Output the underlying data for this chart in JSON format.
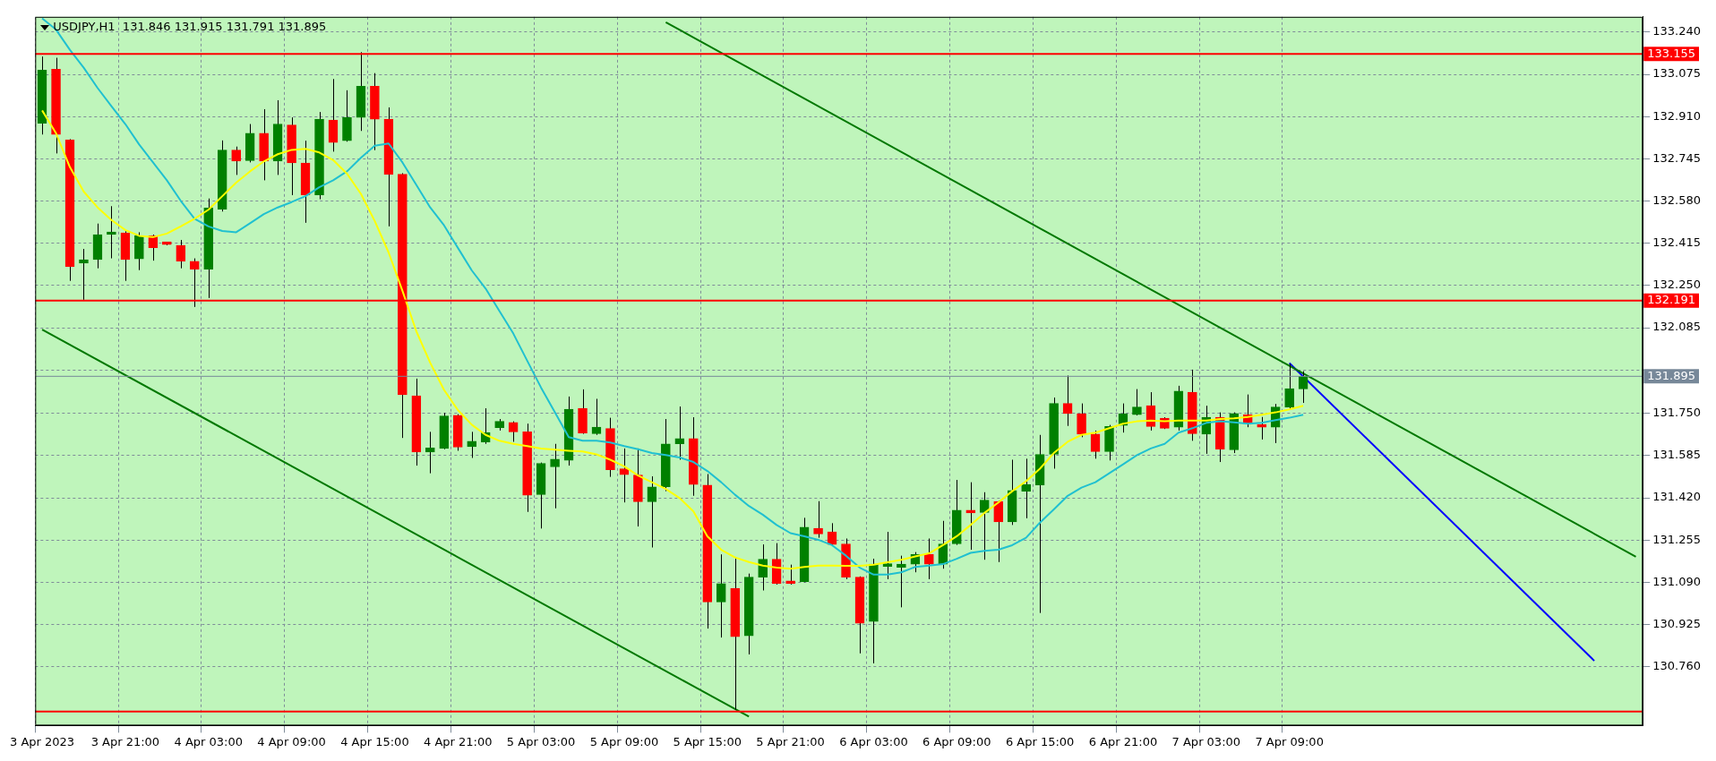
{
  "chart_data": {
    "type": "candlestick",
    "title": "USDJPY,H1  131.846 131.915 131.791 131.895",
    "categories": [
      "3 Apr 2023",
      null,
      null,
      null,
      null,
      null,
      "3 Apr 21:00",
      null,
      null,
      null,
      null,
      null,
      "4 Apr 03:00",
      null,
      null,
      null,
      null,
      null,
      "4 Apr 09:00",
      null,
      null,
      null,
      null,
      null,
      "4 Apr 15:00",
      null,
      null,
      null,
      null,
      null,
      "4 Apr 21:00",
      null,
      null,
      null,
      null,
      null,
      "5 Apr 03:00",
      null,
      null,
      null,
      null,
      null,
      "5 Apr 09:00",
      null,
      null,
      null,
      null,
      null,
      "5 Apr 15:00",
      null,
      null,
      null,
      null,
      null,
      "5 Apr 21:00",
      null,
      null,
      null,
      null,
      null,
      "6 Apr 03:00",
      null,
      null,
      null,
      null,
      null,
      "6 Apr 09:00",
      null,
      null,
      null,
      null,
      null,
      "6 Apr 15:00",
      null,
      null,
      null,
      null,
      null,
      "6 Apr 21:00",
      null,
      null,
      null,
      null,
      null,
      "7 Apr 03:00",
      null,
      null,
      null,
      null,
      null,
      "7 Apr 09:00",
      null,
      null,
      null,
      null,
      null,
      null,
      null,
      null,
      null,
      null,
      null,
      null,
      null,
      null,
      null,
      null,
      null,
      null,
      null,
      null,
      null,
      null,
      null,
      null,
      null
    ],
    "ohlc": [
      [
        132.884,
        133.145,
        132.84,
        133.092
      ],
      [
        133.095,
        133.14,
        132.766,
        132.84
      ],
      [
        132.819,
        132.822,
        132.268,
        132.324
      ],
      [
        132.337,
        132.393,
        132.194,
        132.351
      ],
      [
        132.351,
        132.492,
        132.317,
        132.449
      ],
      [
        132.449,
        132.56,
        132.356,
        132.456
      ],
      [
        132.456,
        132.462,
        132.268,
        132.351
      ],
      [
        132.354,
        132.458,
        132.31,
        132.444
      ],
      [
        132.444,
        132.449,
        132.347,
        132.398
      ],
      [
        132.412,
        132.416,
        132.407,
        132.41
      ],
      [
        132.407,
        132.428,
        132.317,
        132.345
      ],
      [
        132.345,
        132.356,
        132.166,
        132.314
      ],
      [
        132.314,
        132.59,
        132.201,
        132.553
      ],
      [
        132.548,
        132.817,
        132.539,
        132.779
      ],
      [
        132.779,
        132.793,
        132.682,
        132.736
      ],
      [
        132.738,
        132.881,
        132.731,
        132.845
      ],
      [
        132.845,
        132.939,
        132.661,
        132.736
      ],
      [
        132.736,
        132.974,
        132.682,
        132.881
      ],
      [
        132.877,
        132.907,
        132.603,
        132.729
      ],
      [
        132.729,
        132.816,
        132.495,
        132.604
      ],
      [
        132.604,
        132.928,
        132.587,
        132.9
      ],
      [
        132.897,
        133.057,
        132.773,
        132.809
      ],
      [
        132.816,
        133.013,
        132.812,
        132.907
      ],
      [
        132.907,
        133.162,
        132.854,
        133.029
      ],
      [
        133.029,
        133.08,
        132.779,
        132.9
      ],
      [
        132.9,
        132.946,
        132.481,
        132.685
      ],
      [
        132.685,
        132.689,
        131.654,
        131.823
      ],
      [
        131.819,
        131.886,
        131.546,
        131.599
      ],
      [
        131.599,
        131.678,
        131.516,
        131.615
      ],
      [
        131.613,
        131.752,
        131.61,
        131.74
      ],
      [
        131.743,
        131.747,
        131.604,
        131.618
      ],
      [
        131.62,
        131.678,
        131.576,
        131.641
      ],
      [
        131.638,
        131.77,
        131.631,
        131.675
      ],
      [
        131.694,
        131.728,
        131.683,
        131.719
      ],
      [
        131.715,
        131.719,
        131.639,
        131.678
      ],
      [
        131.678,
        131.71,
        131.365,
        131.43
      ],
      [
        131.433,
        131.558,
        131.3,
        131.555
      ],
      [
        131.541,
        131.631,
        131.379,
        131.571
      ],
      [
        131.567,
        131.816,
        131.546,
        131.766
      ],
      [
        131.77,
        131.844,
        131.67,
        131.673
      ],
      [
        131.671,
        131.807,
        131.666,
        131.696
      ],
      [
        131.691,
        131.733,
        131.502,
        131.53
      ],
      [
        131.534,
        131.613,
        131.402,
        131.511
      ],
      [
        131.509,
        131.613,
        131.308,
        131.405
      ],
      [
        131.405,
        131.504,
        131.226,
        131.463
      ],
      [
        131.463,
        131.728,
        131.446,
        131.631
      ],
      [
        131.631,
        131.777,
        131.569,
        131.652
      ],
      [
        131.652,
        131.735,
        131.428,
        131.472
      ],
      [
        131.47,
        131.513,
        130.909,
        131.013
      ],
      [
        131.013,
        131.199,
        130.874,
        131.085
      ],
      [
        131.066,
        131.182,
        130.592,
        130.877
      ],
      [
        130.881,
        131.124,
        130.808,
        131.11
      ],
      [
        131.11,
        131.238,
        131.058,
        131.18
      ],
      [
        131.18,
        131.243,
        131.081,
        131.085
      ],
      [
        131.09,
        131.159,
        131.081,
        131.085
      ],
      [
        131.092,
        131.342,
        131.09,
        131.305
      ],
      [
        131.301,
        131.407,
        131.264,
        131.279
      ],
      [
        131.287,
        131.321,
        131.235,
        131.238
      ],
      [
        131.24,
        131.261,
        131.102,
        131.11
      ],
      [
        131.11,
        131.113,
        130.812,
        130.93
      ],
      [
        130.937,
        131.182,
        130.773,
        131.161
      ],
      [
        131.152,
        131.287,
        131.102,
        131.153
      ],
      [
        131.148,
        131.194,
        130.992,
        131.161
      ],
      [
        131.161,
        131.208,
        131.129,
        131.199
      ],
      [
        131.199,
        131.261,
        131.102,
        131.161
      ],
      [
        131.161,
        131.33,
        131.143,
        131.24
      ],
      [
        131.24,
        131.49,
        131.236,
        131.372
      ],
      [
        131.372,
        131.481,
        131.217,
        131.361
      ],
      [
        131.363,
        131.442,
        131.178,
        131.411
      ],
      [
        131.405,
        131.409,
        131.169,
        131.326
      ],
      [
        131.326,
        131.569,
        131.314,
        131.449
      ],
      [
        131.446,
        131.573,
        131.34,
        131.472
      ],
      [
        131.47,
        131.666,
        130.97,
        131.59
      ],
      [
        131.59,
        131.812,
        131.534,
        131.789
      ],
      [
        131.789,
        131.898,
        131.701,
        131.749
      ],
      [
        131.749,
        131.789,
        131.657,
        131.669
      ],
      [
        131.669,
        131.683,
        131.573,
        131.601
      ],
      [
        131.601,
        131.705,
        131.566,
        131.699
      ],
      [
        131.703,
        131.789,
        131.675,
        131.749
      ],
      [
        131.745,
        131.845,
        131.742,
        131.775
      ],
      [
        131.78,
        131.833,
        131.683,
        131.699
      ],
      [
        131.731,
        131.735,
        131.689,
        131.692
      ],
      [
        131.696,
        131.858,
        131.683,
        131.837
      ],
      [
        131.833,
        131.921,
        131.643,
        131.671
      ],
      [
        131.669,
        131.78,
        131.592,
        131.735
      ],
      [
        131.735,
        131.754,
        131.56,
        131.61
      ],
      [
        131.608,
        131.754,
        131.595,
        131.75
      ],
      [
        131.745,
        131.824,
        131.696,
        131.71
      ],
      [
        131.706,
        131.736,
        131.648,
        131.696
      ],
      [
        131.696,
        131.787,
        131.634,
        131.775
      ],
      [
        131.775,
        131.944,
        131.77,
        131.847
      ],
      [
        131.846,
        131.915,
        131.791,
        131.895
      ],
      null,
      null,
      null,
      null,
      null,
      null,
      null,
      null,
      null,
      null,
      null,
      null,
      null,
      null,
      null,
      null,
      null,
      null,
      null,
      null,
      null,
      null,
      null,
      null
    ],
    "colors": [
      "#008000",
      "#ff0000",
      "#ff0000",
      "#008000",
      "#008000",
      "#008000",
      "#ff0000",
      "#008000",
      "#ff0000",
      "#ff0000",
      "#ff0000",
      "#ff0000",
      "#008000",
      "#008000",
      "#ff0000",
      "#008000",
      "#ff0000",
      "#008000",
      "#ff0000",
      "#ff0000",
      "#008000",
      "#ff0000",
      "#008000",
      "#008000",
      "#ff0000",
      "#ff0000",
      "#ff0000",
      "#ff0000",
      "#008000",
      "#008000",
      "#ff0000",
      "#008000",
      "#008000",
      "#008000",
      "#ff0000",
      "#ff0000",
      "#008000",
      "#008000",
      "#008000",
      "#ff0000",
      "#008000",
      "#ff0000",
      "#ff0000",
      "#ff0000",
      "#008000",
      "#008000",
      "#008000",
      "#ff0000",
      "#ff0000",
      "#008000",
      "#ff0000",
      "#008000",
      "#008000",
      "#ff0000",
      "#ff0000",
      "#008000",
      "#ff0000",
      "#ff0000",
      "#ff0000",
      "#ff0000",
      "#008000",
      "#008000",
      "#008000",
      "#008000",
      "#ff0000",
      "#008000",
      "#008000",
      "#ff0000",
      "#008000",
      "#ff0000",
      "#008000",
      "#008000",
      "#008000",
      "#008000",
      "#ff0000",
      "#ff0000",
      "#ff0000",
      "#008000",
      "#008000",
      "#008000",
      "#ff0000",
      "#ff0000",
      "#008000",
      "#ff0000",
      "#008000",
      "#ff0000",
      "#008000",
      "#ff0000",
      "#ff0000",
      "#008000",
      "#008000",
      "#008000",
      null,
      null,
      null,
      null,
      null,
      null,
      null,
      null,
      null,
      null,
      null,
      null,
      null,
      null,
      null,
      null,
      null,
      null,
      null,
      null,
      null,
      null,
      null,
      null
    ],
    "series": [
      {
        "type": "line",
        "color": "#ffff00",
        "values": [
          132.934,
          132.845,
          132.713,
          132.617,
          132.555,
          132.506,
          132.467,
          132.444,
          132.439,
          132.453,
          132.481,
          132.511,
          132.546,
          132.599,
          132.652,
          132.696,
          132.735,
          132.763,
          132.78,
          132.784,
          132.77,
          132.74,
          132.687,
          132.608,
          132.502,
          132.379,
          132.229,
          132.071,
          131.948,
          131.842,
          131.763,
          131.706,
          131.666,
          131.643,
          131.631,
          131.622,
          131.613,
          131.608,
          131.604,
          131.601,
          131.59,
          131.569,
          131.543,
          131.507,
          131.481,
          131.455,
          131.419,
          131.367,
          131.27,
          131.217,
          131.187,
          131.169,
          131.155,
          131.147,
          131.143,
          131.15,
          131.155,
          131.155,
          131.154,
          131.154,
          131.159,
          131.168,
          131.178,
          131.191,
          131.203,
          131.235,
          131.27,
          131.314,
          131.361,
          131.402,
          131.446,
          131.485,
          131.534,
          131.595,
          131.639,
          131.666,
          131.675,
          131.692,
          131.71,
          131.719,
          131.722,
          131.719,
          131.722,
          131.722,
          131.722,
          131.728,
          131.731,
          131.736,
          131.745,
          131.754,
          131.766,
          131.78,
          null,
          null,
          null,
          null,
          null,
          null,
          null,
          null,
          null,
          null,
          null,
          null,
          null,
          null,
          null,
          null,
          null,
          null,
          null,
          null,
          null,
          null,
          null,
          null
        ]
      },
      {
        "type": "line",
        "color": "#20c0d0",
        "values": [
          133.294,
          133.25,
          133.171,
          133.101,
          133.022,
          132.951,
          132.881,
          132.801,
          132.731,
          132.661,
          132.581,
          132.511,
          132.481,
          132.463,
          132.458,
          132.493,
          132.529,
          132.555,
          132.576,
          132.599,
          132.634,
          132.661,
          132.696,
          132.749,
          132.796,
          132.805,
          132.731,
          132.643,
          132.555,
          132.485,
          132.397,
          132.309,
          132.238,
          132.15,
          132.062,
          131.956,
          131.851,
          131.754,
          131.657,
          131.643,
          131.643,
          131.636,
          131.622,
          131.61,
          131.595,
          131.587,
          131.578,
          131.56,
          131.525,
          131.481,
          131.432,
          131.388,
          131.354,
          131.314,
          131.282,
          131.27,
          131.256,
          131.235,
          131.194,
          131.147,
          131.12,
          131.12,
          131.129,
          131.15,
          131.155,
          131.161,
          131.182,
          131.205,
          131.213,
          131.217,
          131.235,
          131.264,
          131.323,
          131.375,
          131.428,
          131.46,
          131.481,
          131.516,
          131.551,
          131.587,
          131.613,
          131.631,
          131.675,
          131.692,
          131.713,
          131.719,
          131.715,
          131.71,
          131.713,
          131.724,
          131.733,
          131.745,
          null,
          null,
          null,
          null,
          null,
          null,
          null,
          null,
          null,
          null,
          null,
          null,
          null,
          null,
          null,
          null,
          null,
          null,
          null,
          null,
          null,
          null,
          null,
          null
        ]
      },
      {
        "type": "line",
        "color": "#007800",
        "values": [
          null,
          null,
          null,
          null,
          null,
          null,
          null,
          null,
          null,
          null,
          null,
          null,
          null,
          null,
          null,
          null,
          null,
          null,
          null,
          null,
          null,
          null,
          null,
          null,
          null,
          null,
          null,
          null,
          null,
          null,
          null,
          null,
          null,
          null,
          null,
          null,
          null,
          null,
          null,
          null,
          null,
          null,
          null,
          null,
          null,
          133.279,
          null,
          null,
          null,
          null,
          null,
          null,
          null,
          null,
          null,
          null,
          null,
          null,
          null,
          null,
          null,
          null,
          null,
          null,
          null,
          null,
          null,
          null,
          null,
          null,
          null,
          null,
          null,
          null,
          null,
          null,
          null,
          null,
          null,
          null,
          null,
          null,
          null,
          null,
          null,
          null,
          null,
          null,
          null,
          null,
          null,
          null,
          null,
          null,
          null,
          null,
          null,
          null,
          null,
          null,
          null,
          null,
          null,
          null,
          null,
          null,
          null,
          null,
          null,
          null,
          null,
          null,
          null,
          null,
          null,
          131.19
        ]
      },
      {
        "type": "line",
        "color": "#007800",
        "values": [
          132.078,
          null,
          null,
          null,
          null,
          null,
          null,
          null,
          null,
          null,
          null,
          null,
          null,
          null,
          null,
          null,
          null,
          null,
          null,
          null,
          null,
          null,
          null,
          null,
          null,
          null,
          null,
          null,
          null,
          null,
          null,
          null,
          null,
          null,
          null,
          null,
          null,
          null,
          null,
          null,
          null,
          null,
          null,
          null,
          null,
          null,
          null,
          null,
          null,
          null,
          null,
          130.565,
          null,
          null,
          null,
          null,
          null,
          null,
          null,
          null,
          null,
          null,
          null,
          null,
          null,
          null,
          null,
          null,
          null,
          null,
          null,
          null,
          null,
          null,
          null,
          null,
          null,
          null,
          null,
          null,
          null,
          null,
          null,
          null,
          null,
          null,
          null,
          null,
          null,
          null,
          null,
          null,
          null,
          null,
          null,
          null,
          null,
          null,
          null,
          null,
          null,
          null,
          null,
          null,
          null,
          null,
          null,
          null,
          null,
          null,
          null,
          null,
          null,
          null,
          null,
          null
        ]
      },
      {
        "type": "line",
        "color": "#0000ff",
        "values": [
          null,
          null,
          null,
          null,
          null,
          null,
          null,
          null,
          null,
          null,
          null,
          null,
          null,
          null,
          null,
          null,
          null,
          null,
          null,
          null,
          null,
          null,
          null,
          null,
          null,
          null,
          null,
          null,
          null,
          null,
          null,
          null,
          null,
          null,
          null,
          null,
          null,
          null,
          null,
          null,
          null,
          null,
          null,
          null,
          null,
          null,
          null,
          null,
          null,
          null,
          null,
          null,
          null,
          null,
          null,
          null,
          null,
          null,
          null,
          null,
          null,
          null,
          null,
          null,
          null,
          null,
          null,
          null,
          null,
          null,
          null,
          null,
          null,
          null,
          null,
          null,
          null,
          null,
          null,
          null,
          null,
          null,
          null,
          null,
          null,
          null,
          null,
          null,
          null,
          null,
          131.947,
          null,
          null,
          null,
          null,
          null,
          null,
          null,
          null,
          null,
          null,
          null,
          null,
          null,
          null,
          null,
          null,
          null,
          null,
          null,
          null,
          null,
          130.783,
          null,
          null,
          null
        ]
      }
    ],
    "ylim": [
      130.53,
      133.3
    ],
    "yticks": [
      {
        "value": 130.76,
        "label": "130.760"
      },
      {
        "value": 130.925,
        "label": "130.925"
      },
      {
        "value": 131.09,
        "label": "131.090"
      },
      {
        "value": 131.255,
        "label": "131.255"
      },
      {
        "value": 131.42,
        "label": "131.420"
      },
      {
        "value": 131.585,
        "label": "131.585"
      },
      {
        "value": 131.75,
        "label": "131.750"
      },
      {
        "value": 131.92,
        "label": null
      },
      {
        "value": 132.085,
        "label": "132.085"
      },
      {
        "value": 132.25,
        "label": "132.250"
      },
      {
        "value": 132.415,
        "label": "132.415"
      },
      {
        "value": 132.58,
        "label": "132.580"
      },
      {
        "value": 132.745,
        "label": "132.745"
      },
      {
        "value": 132.91,
        "label": "132.910"
      },
      {
        "value": 133.075,
        "label": "133.075"
      },
      {
        "value": 133.24,
        "label": "133.240"
      }
    ],
    "ref_lines": [
      {
        "axis": "y",
        "value": 133.155,
        "label": "133.155",
        "color": "#ff0000"
      },
      {
        "axis": "y",
        "value": 132.191,
        "label": "132.191",
        "color": "#ff0000"
      },
      {
        "axis": "y",
        "value": 130.585,
        "color": "#ff0000"
      },
      {
        "axis": "y",
        "value": 131.895,
        "label": "131.895",
        "color": "#778899"
      }
    ],
    "grid": true
  }
}
